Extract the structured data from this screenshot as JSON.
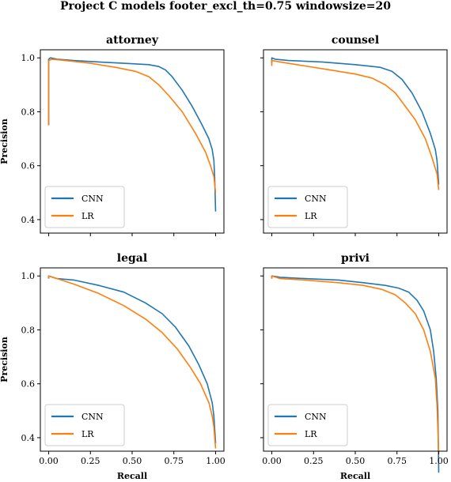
{
  "figure": {
    "title": "Project C models footer_excl_th=0.75 windowsize=20"
  },
  "chart_data": [
    {
      "type": "line",
      "title": "attorney",
      "xlabel": "",
      "ylabel": "Precision",
      "xlim": [
        -0.05,
        1.05
      ],
      "ylim": [
        0.35,
        1.03
      ],
      "yticks": [
        "0.4",
        "0.6",
        "0.8",
        "1.0"
      ],
      "xticks": [],
      "legend": "lower-left",
      "series": [
        {
          "name": "CNN",
          "color": "#1f77b4",
          "x": [
            0.0,
            0.0,
            0.01,
            0.05,
            0.15,
            0.3,
            0.45,
            0.6,
            0.66,
            0.7,
            0.74,
            0.8,
            0.86,
            0.92,
            0.96,
            0.98,
            0.99,
            0.995,
            1.0
          ],
          "y": [
            0.75,
            0.995,
            1.0,
            0.995,
            0.99,
            0.985,
            0.98,
            0.975,
            0.968,
            0.955,
            0.93,
            0.88,
            0.82,
            0.75,
            0.7,
            0.66,
            0.62,
            0.55,
            0.43
          ]
        },
        {
          "name": "LR",
          "color": "#ff7f0e",
          "x": [
            0.0,
            0.0,
            0.02,
            0.1,
            0.25,
            0.4,
            0.52,
            0.6,
            0.66,
            0.72,
            0.8,
            0.88,
            0.94,
            0.97,
            0.99,
            1.0
          ],
          "y": [
            0.75,
            0.99,
            0.995,
            0.99,
            0.98,
            0.965,
            0.95,
            0.93,
            0.9,
            0.86,
            0.8,
            0.72,
            0.65,
            0.6,
            0.56,
            0.5
          ]
        }
      ]
    },
    {
      "type": "line",
      "title": "counsel",
      "xlabel": "",
      "ylabel": "",
      "xlim": [
        -0.05,
        1.05
      ],
      "ylim": [
        0.35,
        1.03
      ],
      "yticks": [],
      "xticks": [],
      "legend": "lower-left",
      "series": [
        {
          "name": "CNN",
          "color": "#1f77b4",
          "x": [
            0.0,
            0.0,
            0.02,
            0.1,
            0.3,
            0.5,
            0.65,
            0.72,
            0.78,
            0.84,
            0.9,
            0.95,
            0.98,
            0.99,
            1.0
          ],
          "y": [
            0.98,
            1.0,
            0.995,
            0.99,
            0.985,
            0.975,
            0.965,
            0.95,
            0.92,
            0.87,
            0.8,
            0.72,
            0.66,
            0.62,
            0.53
          ]
        },
        {
          "name": "LR",
          "color": "#ff7f0e",
          "x": [
            0.0,
            0.0,
            0.05,
            0.2,
            0.35,
            0.5,
            0.6,
            0.68,
            0.74,
            0.8,
            0.86,
            0.92,
            0.96,
            0.99,
            1.0
          ],
          "y": [
            0.97,
            0.99,
            0.985,
            0.97,
            0.955,
            0.94,
            0.925,
            0.9,
            0.87,
            0.82,
            0.77,
            0.7,
            0.63,
            0.57,
            0.51
          ]
        }
      ]
    },
    {
      "type": "line",
      "title": "legal",
      "xlabel": "Recall",
      "ylabel": "Precision",
      "xlim": [
        -0.05,
        1.05
      ],
      "ylim": [
        0.35,
        1.03
      ],
      "yticks": [
        "0.4",
        "0.6",
        "0.8",
        "1.0"
      ],
      "xticks": [
        "0.00",
        "0.25",
        "0.50",
        "0.75",
        "1.00"
      ],
      "legend": "lower-left",
      "series": [
        {
          "name": "CNN",
          "color": "#1f77b4",
          "x": [
            0.0,
            0.0,
            0.05,
            0.15,
            0.3,
            0.45,
            0.58,
            0.68,
            0.76,
            0.84,
            0.9,
            0.95,
            0.98,
            0.99,
            1.0
          ],
          "y": [
            0.99,
            1.0,
            0.99,
            0.985,
            0.965,
            0.94,
            0.9,
            0.86,
            0.81,
            0.74,
            0.67,
            0.6,
            0.53,
            0.48,
            0.38
          ]
        },
        {
          "name": "LR",
          "color": "#ff7f0e",
          "x": [
            0.0,
            0.0,
            0.05,
            0.15,
            0.3,
            0.45,
            0.58,
            0.68,
            0.77,
            0.85,
            0.91,
            0.96,
            0.98,
            0.99,
            1.0
          ],
          "y": [
            0.99,
            1.0,
            0.99,
            0.97,
            0.935,
            0.89,
            0.84,
            0.79,
            0.73,
            0.66,
            0.6,
            0.53,
            0.48,
            0.44,
            0.36
          ]
        }
      ]
    },
    {
      "type": "line",
      "title": "privi",
      "xlabel": "Recall",
      "ylabel": "",
      "xlim": [
        -0.05,
        1.05
      ],
      "ylim": [
        0.35,
        1.03
      ],
      "yticks": [],
      "xticks": [
        "0.00",
        "0.25",
        "0.50",
        "0.75",
        "1.00"
      ],
      "legend": "lower-left",
      "series": [
        {
          "name": "CNN",
          "color": "#1f77b4",
          "x": [
            0.0,
            0.0,
            0.05,
            0.2,
            0.4,
            0.55,
            0.68,
            0.76,
            0.82,
            0.87,
            0.91,
            0.95,
            0.97,
            0.985,
            0.995,
            1.0
          ],
          "y": [
            0.99,
            1.0,
            0.995,
            0.99,
            0.985,
            0.975,
            0.965,
            0.955,
            0.94,
            0.91,
            0.87,
            0.8,
            0.72,
            0.62,
            0.5,
            0.27
          ]
        },
        {
          "name": "LR",
          "color": "#ff7f0e",
          "x": [
            0.0,
            0.0,
            0.05,
            0.2,
            0.4,
            0.55,
            0.66,
            0.74,
            0.8,
            0.86,
            0.91,
            0.95,
            0.98,
            0.99,
            1.0
          ],
          "y": [
            0.99,
            1.0,
            0.99,
            0.985,
            0.975,
            0.965,
            0.95,
            0.93,
            0.9,
            0.86,
            0.8,
            0.72,
            0.62,
            0.52,
            0.34
          ]
        }
      ]
    }
  ]
}
